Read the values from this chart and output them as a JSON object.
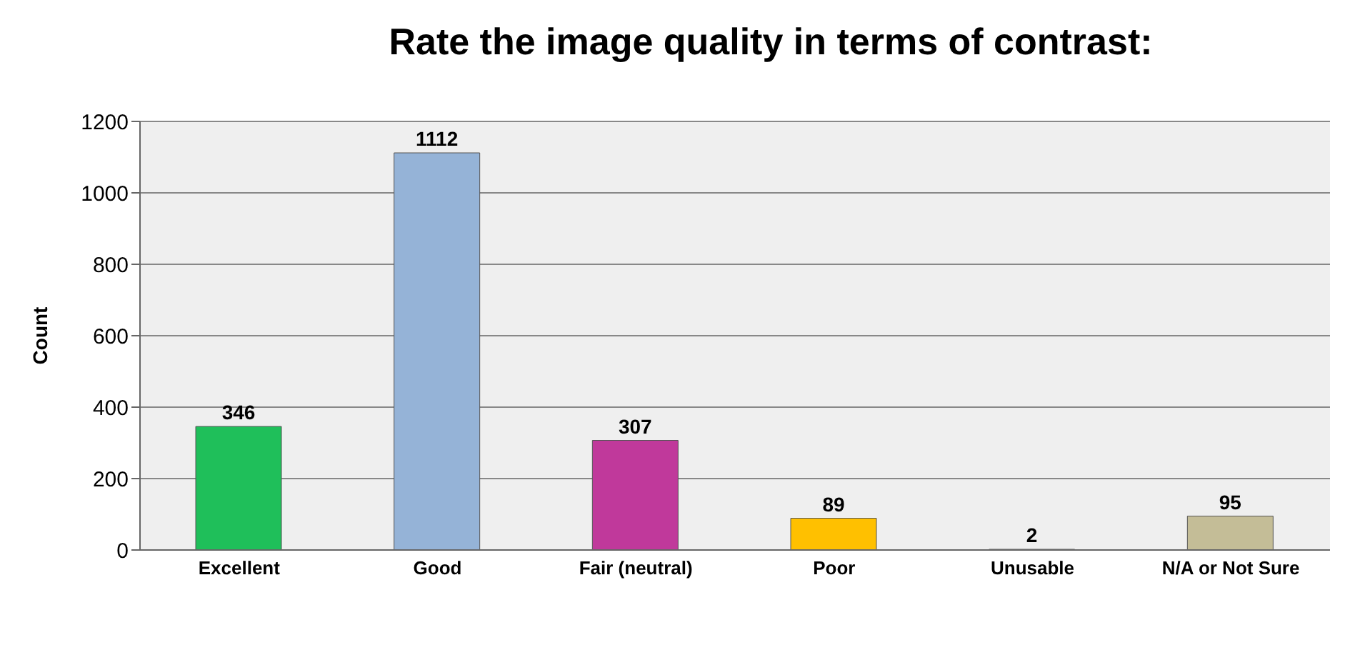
{
  "chart_data": {
    "type": "bar",
    "title": "Rate the image quality in terms of contrast:",
    "ylabel": "Count",
    "categories": [
      "Excellent",
      "Good",
      "Fair (neutral)",
      "Poor",
      "Unusable",
      "N/A or Not Sure"
    ],
    "values": [
      346,
      1112,
      307,
      89,
      2,
      95
    ],
    "colors": [
      "#1fbf5a",
      "#95b3d7",
      "#c0399b",
      "#ffc000",
      "#e00000",
      "#c4bd97"
    ],
    "ylim": [
      0,
      1200
    ],
    "yticks": [
      0,
      200,
      400,
      600,
      800,
      1000,
      1200
    ],
    "grid": "y",
    "data_labels": true
  }
}
